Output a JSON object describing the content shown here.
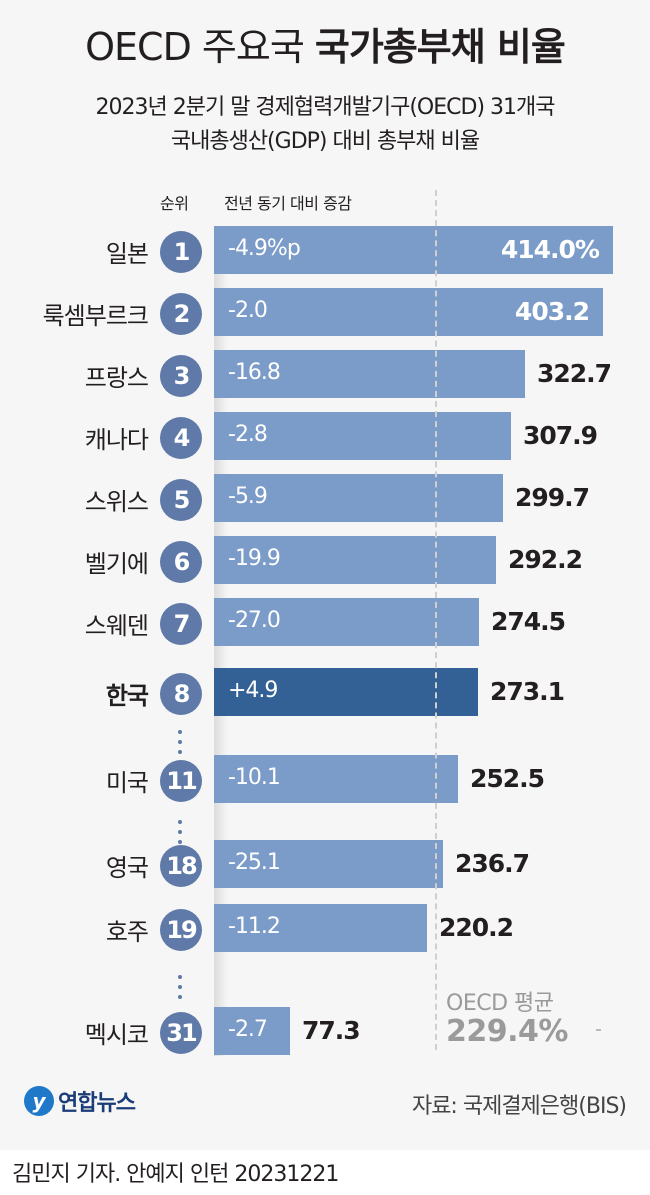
{
  "header": {
    "title_light": "OECD 주요국",
    "title_bold": "국가총부채 비율",
    "subtitle_line1": "2023년 2분기 말 경제협력개발기구(OECD) 31개국",
    "subtitle_line2": "국내총생산(GDP) 대비 총부채 비율",
    "col_rank": "순위",
    "col_change": "전년 동기 대비 증감"
  },
  "rows": [
    {
      "country": "일본",
      "rank": "1",
      "change": "-4.9%p",
      "value": "414.0%"
    },
    {
      "country": "룩셈부르크",
      "rank": "2",
      "change": "-2.0",
      "value": "403.2"
    },
    {
      "country": "프랑스",
      "rank": "3",
      "change": "-16.8",
      "value": "322.7"
    },
    {
      "country": "캐나다",
      "rank": "4",
      "change": "-2.8",
      "value": "307.9"
    },
    {
      "country": "스위스",
      "rank": "5",
      "change": "-5.9",
      "value": "299.7"
    },
    {
      "country": "벨기에",
      "rank": "6",
      "change": "-19.9",
      "value": "292.2"
    },
    {
      "country": "스웨덴",
      "rank": "7",
      "change": "-27.0",
      "value": "274.5"
    },
    {
      "country": "한국",
      "rank": "8",
      "change": "+4.9",
      "value": "273.1"
    },
    {
      "country": "미국",
      "rank": "11",
      "change": "-10.1",
      "value": "252.5"
    },
    {
      "country": "영국",
      "rank": "18",
      "change": "-25.1",
      "value": "236.7"
    },
    {
      "country": "호주",
      "rank": "19",
      "change": "-11.2",
      "value": "220.2"
    },
    {
      "country": "멕시코",
      "rank": "31",
      "change": "-2.7",
      "value": "77.3"
    }
  ],
  "average": {
    "label": "OECD 평균",
    "value": "229.4%"
  },
  "footer": {
    "logo_text": "연합뉴스",
    "source": "자료: 국제결제은행(BIS)",
    "credit": "김민지 기자. 안예지 인턴  20231221"
  },
  "colors": {
    "bar": "#7b9bc8",
    "highlight_bar": "#336195",
    "rank_circle": "#5f7aa8",
    "average_text": "#9a9a9a"
  },
  "chart_data": {
    "type": "bar",
    "orientation": "horizontal",
    "title": "OECD 주요국 국가총부채 비율",
    "subtitle": "2023년 2분기 말 경제협력개발기구(OECD) 31개국 국내총생산(GDP) 대비 총부채 비율",
    "unit": "% of GDP",
    "categories": [
      "일본",
      "룩셈부르크",
      "프랑스",
      "캐나다",
      "스위스",
      "벨기에",
      "스웨덴",
      "한국",
      "미국",
      "영국",
      "호주",
      "멕시코"
    ],
    "ranks": [
      1,
      2,
      3,
      4,
      5,
      6,
      7,
      8,
      11,
      18,
      19,
      31
    ],
    "series": [
      {
        "name": "GDP 대비 총부채 비율",
        "values": [
          414.0,
          403.2,
          322.7,
          307.9,
          299.7,
          292.2,
          274.5,
          273.1,
          252.5,
          236.7,
          220.2,
          77.3
        ]
      },
      {
        "name": "전년 동기 대비 증감(%p)",
        "values": [
          -4.9,
          -2.0,
          -16.8,
          -2.8,
          -5.9,
          -19.9,
          -27.0,
          4.9,
          -10.1,
          -25.1,
          -11.2,
          -2.7
        ]
      }
    ],
    "reference_line": {
      "label": "OECD 평균",
      "value": 229.4
    },
    "highlight": "한국",
    "source": "국제결제은행(BIS)"
  }
}
